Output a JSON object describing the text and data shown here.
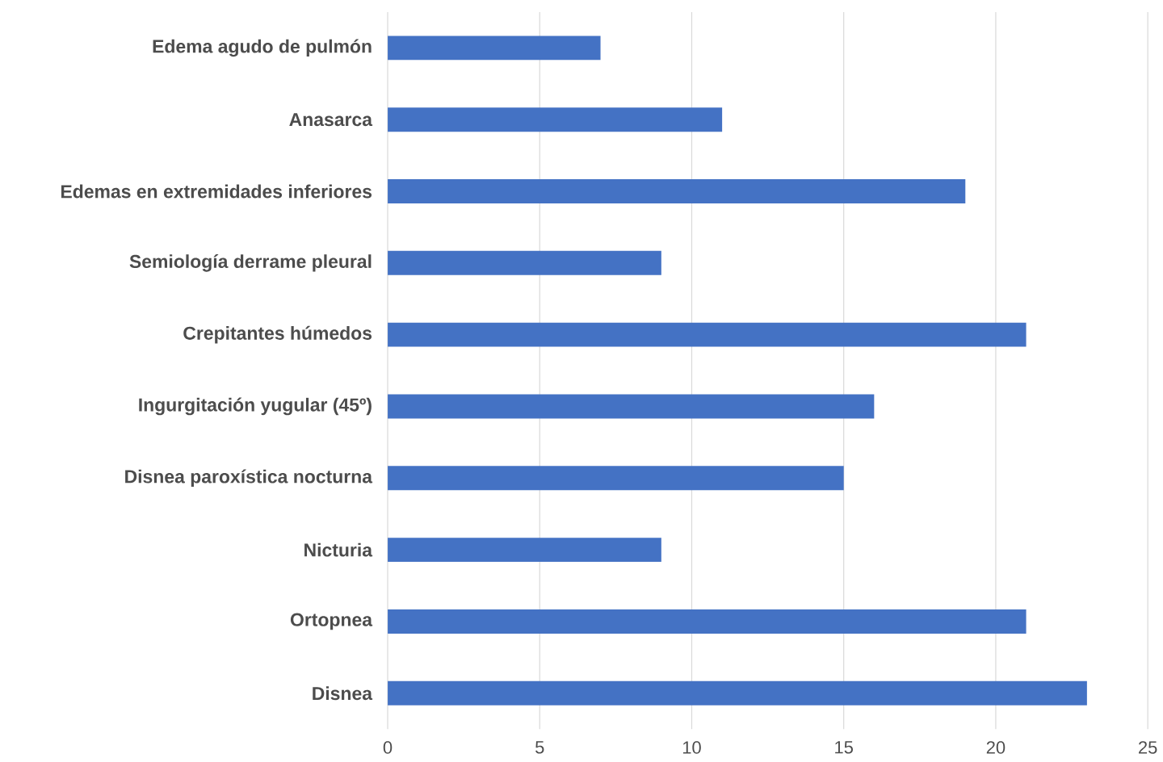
{
  "chart_data": {
    "type": "bar",
    "orientation": "horizontal",
    "categories": [
      "Edema agudo de pulmón",
      "Anasarca",
      "Edemas en extremidades inferiores",
      "Semiología derrame pleural",
      "Crepitantes húmedos",
      "Ingurgitación yugular (45º)",
      "Disnea paroxística nocturna",
      "Nicturia",
      "Ortopnea",
      "Disnea"
    ],
    "values": [
      7,
      11,
      19,
      9,
      21,
      16,
      15,
      9,
      21,
      23
    ],
    "color": "#4472c4",
    "xlim": [
      0,
      25
    ],
    "xticks": [
      0,
      5,
      10,
      15,
      20,
      25
    ],
    "grid": "x"
  }
}
